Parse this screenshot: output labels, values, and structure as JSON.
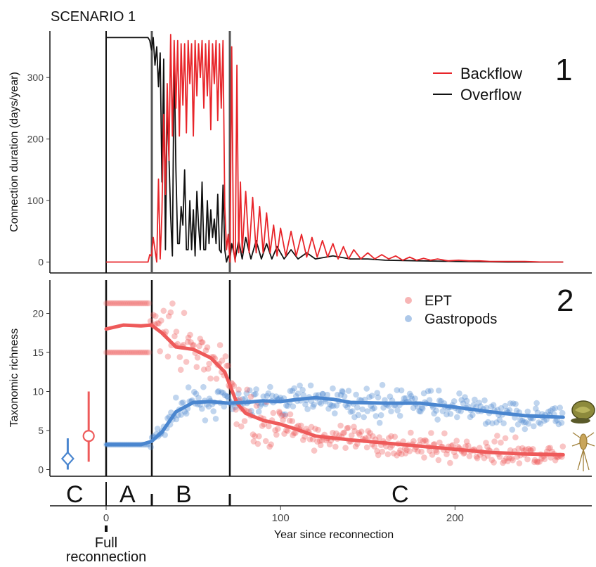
{
  "scenario_title": "SCENARIO 1",
  "annotation_full": "Full",
  "annotation_reconnection": "reconnection",
  "colors": {
    "backflow": "#e8252a",
    "overflow": "#111111",
    "ept": "#ee5a5a",
    "gastropods": "#4a86cf"
  },
  "chart_data": [
    {
      "panel": "1",
      "type": "line",
      "ylabel": "Connection duration (days/year)",
      "ylim": [
        0,
        370
      ],
      "yticks": [
        0,
        100,
        200,
        300
      ],
      "xlim": [
        -30,
        270
      ],
      "legend_position": "top-right",
      "series": [
        {
          "name": "Backflow",
          "color": "#e8252a",
          "x": [
            0,
            24,
            25,
            26,
            27,
            29,
            30,
            31,
            32,
            33,
            34,
            35,
            36,
            37,
            38,
            39,
            40,
            41,
            42,
            43,
            44,
            45,
            46,
            47,
            48,
            49,
            50,
            51,
            52,
            53,
            54,
            55,
            56,
            57,
            58,
            59,
            60,
            61,
            62,
            63,
            64,
            65,
            66,
            67,
            68,
            69,
            70,
            71,
            72,
            73,
            74,
            75,
            76,
            77,
            78,
            80,
            82,
            84,
            86,
            88,
            90,
            92,
            94,
            96,
            98,
            100,
            103,
            106,
            109,
            112,
            115,
            118,
            121,
            124,
            127,
            130,
            133,
            136,
            139,
            142,
            146,
            150,
            154,
            158,
            162,
            166,
            170,
            174,
            178,
            182,
            186,
            190,
            196,
            202,
            208,
            214,
            220,
            230,
            240,
            250,
            262
          ],
          "y": [
            0,
            0,
            12,
            10,
            40,
            0,
            135,
            5,
            80,
            240,
            110,
            290,
            165,
            370,
            205,
            360,
            250,
            360,
            205,
            355,
            255,
            355,
            210,
            360,
            290,
            355,
            205,
            360,
            270,
            355,
            300,
            360,
            250,
            355,
            270,
            360,
            215,
            355,
            290,
            360,
            230,
            355,
            250,
            360,
            90,
            20,
            45,
            0,
            350,
            20,
            0,
            320,
            15,
            130,
            15,
            115,
            15,
            105,
            15,
            90,
            15,
            80,
            15,
            60,
            10,
            55,
            10,
            50,
            10,
            45,
            8,
            40,
            8,
            35,
            8,
            30,
            5,
            25,
            5,
            20,
            5,
            15,
            5,
            12,
            5,
            10,
            3,
            8,
            3,
            6,
            3,
            5,
            2,
            3,
            2,
            2,
            1,
            1,
            1,
            0,
            0
          ]
        },
        {
          "name": "Overflow",
          "color": "#111111",
          "x": [
            0,
            24,
            25,
            26,
            27,
            28,
            29,
            30,
            31,
            32,
            33,
            34,
            35,
            36,
            37,
            38,
            39,
            40,
            41,
            42,
            43,
            44,
            45,
            46,
            47,
            48,
            49,
            50,
            51,
            52,
            53,
            54,
            55,
            56,
            57,
            58,
            59,
            60,
            61,
            62,
            63,
            64,
            65,
            66,
            67,
            68,
            69,
            70,
            71,
            72,
            74,
            76,
            78,
            80,
            83,
            86,
            89,
            92,
            95,
            98,
            102,
            106,
            110,
            115,
            120,
            130,
            140,
            150,
            160,
            180,
            200,
            230,
            262
          ],
          "y": [
            365,
            365,
            360,
            345,
            365,
            320,
            350,
            285,
            340,
            130,
            330,
            20,
            255,
            170,
            75,
            10,
            340,
            150,
            30,
            30,
            90,
            60,
            150,
            20,
            20,
            100,
            20,
            85,
            10,
            115,
            60,
            20,
            130,
            20,
            20,
            100,
            30,
            85,
            40,
            70,
            30,
            110,
            20,
            15,
            125,
            20,
            0,
            10,
            5,
            30,
            5,
            35,
            5,
            40,
            5,
            35,
            5,
            30,
            5,
            25,
            5,
            20,
            5,
            15,
            5,
            10,
            5,
            5,
            3,
            2,
            1,
            0,
            0
          ]
        }
      ]
    },
    {
      "panel": "2",
      "type": "scatter",
      "ylabel": "Taxonomic richness",
      "xlabel": "Year since reconnection",
      "ylim": [
        -1,
        24
      ],
      "yticks": [
        0,
        5,
        10,
        15,
        20
      ],
      "xticks": [
        0,
        100,
        200
      ],
      "xlim": [
        -30,
        270
      ],
      "legend_position": "top-right",
      "phase_boundaries": [
        0,
        26,
        72
      ],
      "series": [
        {
          "name": "EPT",
          "color": "#ee5a5a",
          "pre_reconnection": {
            "x": -10,
            "mean": 4.3,
            "low": 1.0,
            "high": 10.0
          },
          "bands_before_26": [
            21.3,
            15.0
          ],
          "smooth": {
            "x": [
              0,
              10,
              20,
              26,
              32,
              40,
              50,
              60,
              68,
              75,
              80,
              90,
              100,
              110,
              120,
              140,
              160,
              180,
              200,
              220,
              240,
              262
            ],
            "y": [
              18.0,
              18.5,
              18.4,
              18.5,
              17.5,
              15.7,
              15.4,
              14.3,
              12.5,
              8.5,
              7.2,
              6.3,
              5.8,
              5.1,
              4.3,
              3.8,
              3.4,
              3.0,
              2.6,
              2.2,
              2.0,
              1.9
            ]
          }
        },
        {
          "name": "Gastropods",
          "color": "#4a86cf",
          "pre_reconnection": {
            "x": -22,
            "mean": 1.4,
            "low": 0.0,
            "high": 4.0
          },
          "bands_before_26": [
            3.2
          ],
          "smooth": {
            "x": [
              0,
              10,
              20,
              26,
              32,
              40,
              50,
              60,
              70,
              80,
              90,
              100,
              110,
              120,
              130,
              140,
              160,
              180,
              200,
              220,
              240,
              262
            ],
            "y": [
              3.2,
              3.2,
              3.2,
              3.6,
              4.8,
              7.4,
              8.6,
              8.7,
              8.5,
              8.6,
              8.8,
              8.7,
              9.0,
              9.2,
              9.0,
              8.6,
              8.5,
              8.5,
              8.0,
              7.4,
              6.9,
              6.7
            ]
          }
        }
      ],
      "phase_labels": [
        "C",
        "A",
        "B",
        "C"
      ]
    }
  ]
}
